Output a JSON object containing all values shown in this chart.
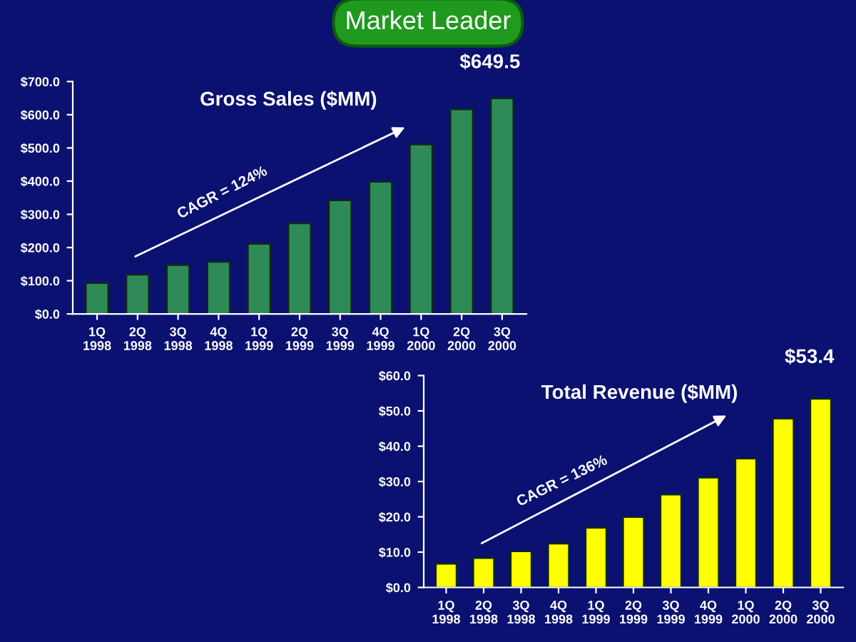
{
  "chart_data": [
    {
      "type": "bar",
      "title": "Gross Sales ($MM)",
      "categories": [
        "1Q\n1998",
        "2Q\n1998",
        "3Q\n1998",
        "4Q\n1998",
        "1Q\n1999",
        "2Q\n1999",
        "3Q\n1999",
        "4Q\n1999",
        "1Q\n2000",
        "2Q\n2000",
        "3Q\n2000"
      ],
      "values": [
        93,
        118,
        147,
        157,
        211,
        273,
        342,
        398,
        510,
        616,
        649.5
      ],
      "color": "#2e8b57",
      "ylim": [
        0,
        700
      ],
      "yticks": [
        {
          "value": 0,
          "label": "$0.0"
        },
        {
          "value": 100,
          "label": "$100.0"
        },
        {
          "value": 200,
          "label": "$200.0"
        },
        {
          "value": 300,
          "label": "$300.0"
        },
        {
          "value": 400,
          "label": "$400.0"
        },
        {
          "value": 500,
          "label": "$500.0"
        },
        {
          "value": 600,
          "label": "$600.0"
        },
        {
          "value": 700,
          "label": "$700.0"
        }
      ],
      "annotations": [
        "Market Leader",
        "CAGR = 124%",
        "$649.5"
      ]
    },
    {
      "type": "bar",
      "title": "Total Revenue ($MM)",
      "categories": [
        "1Q\n1998",
        "2Q\n1998",
        "3Q\n1998",
        "4Q\n1998",
        "1Q\n1999",
        "2Q\n1999",
        "3Q\n1999",
        "4Q\n1999",
        "1Q\n2000",
        "2Q\n2000",
        "3Q\n2000"
      ],
      "values": [
        6.7,
        8.3,
        10.2,
        12.4,
        16.9,
        19.9,
        26.3,
        31.1,
        36.5,
        47.8,
        53.4
      ],
      "color": "#ffff00",
      "ylim": [
        0,
        60
      ],
      "yticks": [
        {
          "value": 0,
          "label": "$0.0"
        },
        {
          "value": 10,
          "label": "$10.0"
        },
        {
          "value": 20,
          "label": "$20.0"
        },
        {
          "value": 30,
          "label": "$30.0"
        },
        {
          "value": 40,
          "label": "$40.0"
        },
        {
          "value": 50,
          "label": "$50.0"
        },
        {
          "value": 60,
          "label": "$60.0"
        }
      ],
      "annotations": [
        "CAGR = 136%",
        "$53.4"
      ]
    }
  ]
}
